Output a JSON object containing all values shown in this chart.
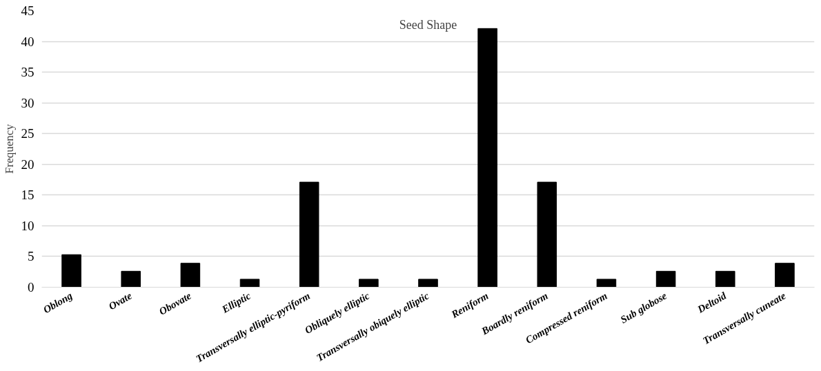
{
  "chart_data": {
    "type": "bar",
    "title": "Seed Shape",
    "ylabel": "Frequency",
    "categories": [
      "Oblong",
      "Ovate",
      "Obovate",
      "Elliptic",
      "Transversally elliptic-pyriform",
      "Obliquely elliptic",
      "Transversally obiquely elliptic",
      "Reniform",
      "Boardly reniform",
      "Compressed reniform",
      "Sub globose",
      "Deltoid",
      "Transversally cuneate"
    ],
    "values": [
      5.3,
      2.6,
      3.9,
      1.3,
      17.1,
      1.3,
      1.3,
      42.1,
      17.1,
      1.3,
      2.6,
      2.6,
      3.9
    ],
    "color": "#000000",
    "ylim": [
      0,
      45
    ],
    "yticks": [
      0,
      5,
      10,
      15,
      20,
      25,
      30,
      35,
      40,
      45
    ],
    "grid": "y"
  }
}
